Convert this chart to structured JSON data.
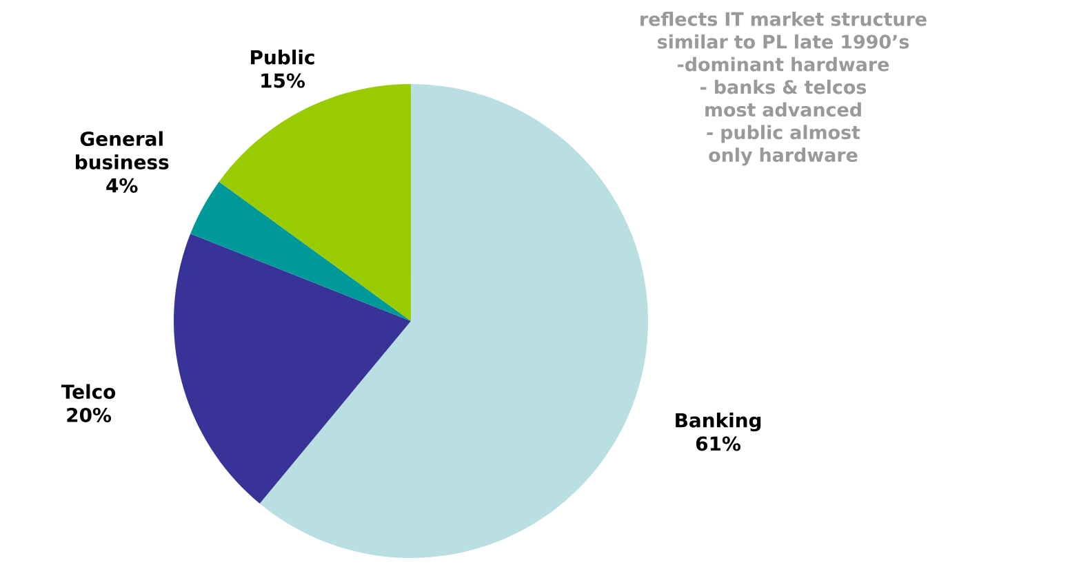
{
  "chart_data": {
    "type": "pie",
    "categories": [
      "Banking",
      "Telco",
      "General business",
      "Public"
    ],
    "values": [
      61,
      20,
      4,
      15
    ],
    "value_labels": [
      "61%",
      "20%",
      "4%",
      "15%"
    ],
    "colors": [
      "#b9dfe2",
      "#383397",
      "#009999",
      "#99cc00"
    ],
    "annotations": [
      "reflects IT market structure similar to PL late 1990’s",
      "-dominant hardware",
      "- banks & telcos most advanced",
      "- public almost only hardware"
    ]
  }
}
